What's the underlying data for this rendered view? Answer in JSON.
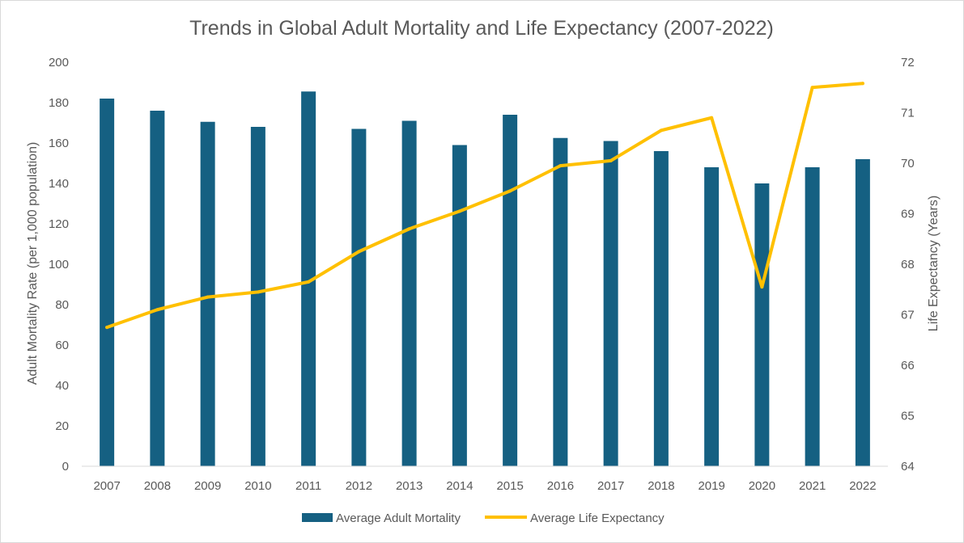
{
  "chart_data": {
    "type": "bar",
    "title": "Trends in Global Adult Mortality and Life Expectancy (2007-2022)",
    "categories": [
      "2007",
      "2008",
      "2009",
      "2010",
      "2011",
      "2012",
      "2013",
      "2014",
      "2015",
      "2016",
      "2017",
      "2018",
      "2019",
      "2020",
      "2021",
      "2022"
    ],
    "series": [
      {
        "name": "Average Adult Mortality",
        "type": "bar",
        "axis": "left",
        "color": "#156082",
        "values": [
          182,
          176,
          170.5,
          168,
          185.5,
          167,
          171,
          159,
          174,
          162.5,
          161,
          156,
          148,
          140,
          148,
          152
        ]
      },
      {
        "name": "Average Life Expectancy",
        "type": "line",
        "axis": "right",
        "color": "#FFC000",
        "values": [
          66.75,
          67.1,
          67.35,
          67.45,
          67.65,
          68.25,
          68.7,
          69.05,
          69.45,
          69.95,
          70.05,
          70.65,
          70.9,
          67.55,
          71.5,
          71.58
        ]
      }
    ],
    "ylabel": "Adult Mortality Rate (per 1,000 population)",
    "y2label": "Life Expectancy (Years)",
    "xlabel": "",
    "ylim": [
      0,
      200
    ],
    "y2lim": [
      64,
      72
    ],
    "yticks": [
      "0",
      "20",
      "40",
      "60",
      "80",
      "100",
      "120",
      "140",
      "160",
      "180",
      "200"
    ],
    "y2ticks": [
      "64",
      "65",
      "66",
      "67",
      "68",
      "69",
      "70",
      "71",
      "72"
    ],
    "grid": false,
    "legend_position": "bottom"
  }
}
